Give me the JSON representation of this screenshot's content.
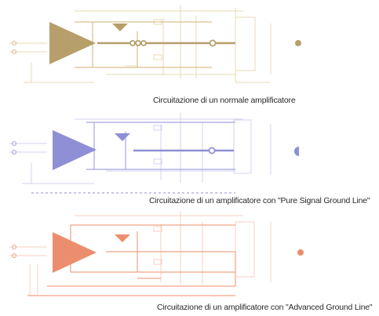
{
  "panels": [
    {
      "caption": "Circuitazione di un normale amplificatore",
      "accent": "#b69f6a",
      "trace": "#d9c08a",
      "faint": "#e8d9b6"
    },
    {
      "caption": "Circuitazione di un amplificatore con \"Pure Signal Ground Line\"",
      "accent": "#8f8fd6",
      "trace": "#a5a5e2",
      "faint": "#d3d3f0"
    },
    {
      "caption": "Circuitazione di un amplificatore con \"Advanced Ground Line\"",
      "accent": "#ec8e6e",
      "trace": "#f0a386",
      "faint": "#f7d2c2"
    }
  ]
}
